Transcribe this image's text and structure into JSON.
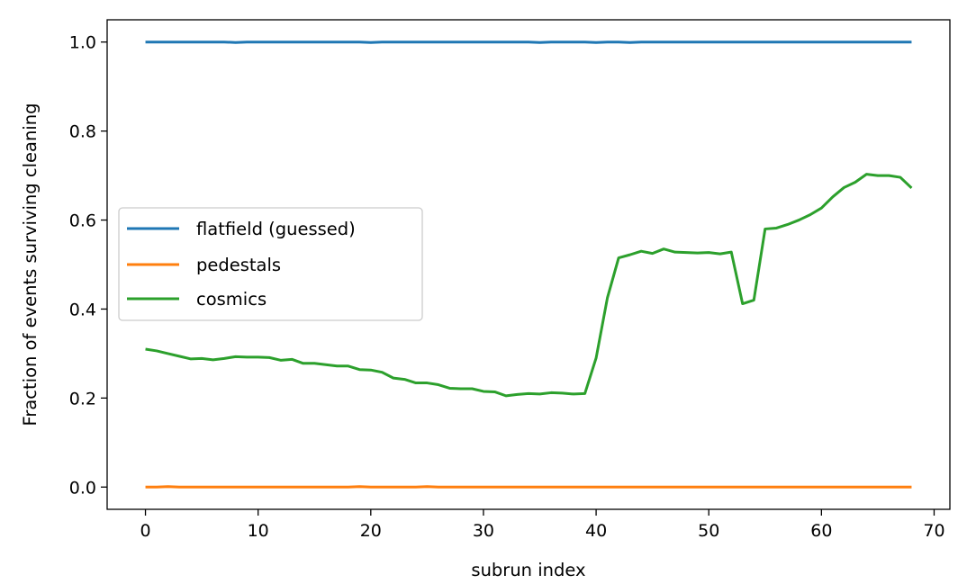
{
  "chart_data": {
    "type": "line",
    "xlabel": "subrun index",
    "ylabel": "Fraction of events surviving cleaning",
    "xlim": [
      -3.4,
      71.4
    ],
    "ylim": [
      -0.05,
      1.05
    ],
    "xticks": [
      0,
      10,
      20,
      30,
      40,
      50,
      60,
      70
    ],
    "yticks": [
      0.0,
      0.2,
      0.4,
      0.6,
      0.8,
      1.0
    ],
    "xtick_labels": [
      "0",
      "10",
      "20",
      "30",
      "40",
      "50",
      "60",
      "70"
    ],
    "ytick_labels": [
      "0.0",
      "0.2",
      "0.4",
      "0.6",
      "0.8",
      "1.0"
    ],
    "legend_position": "center-left",
    "grid": false,
    "x": [
      0,
      1,
      2,
      3,
      4,
      5,
      6,
      7,
      8,
      9,
      10,
      11,
      12,
      13,
      14,
      15,
      16,
      17,
      18,
      19,
      20,
      21,
      22,
      23,
      24,
      25,
      26,
      27,
      28,
      29,
      30,
      31,
      32,
      33,
      34,
      35,
      36,
      37,
      38,
      39,
      40,
      41,
      42,
      43,
      44,
      45,
      46,
      47,
      48,
      49,
      50,
      51,
      52,
      53,
      54,
      55,
      56,
      57,
      58,
      59,
      60,
      61,
      62,
      63,
      64,
      65,
      66,
      67,
      68
    ],
    "series": [
      {
        "name": "flatfield (guessed)",
        "color": "#1f77b4",
        "values": [
          1.0,
          1.0,
          1.0,
          1.0,
          1.0,
          1.0,
          1.0,
          1.0,
          0.999,
          1.0,
          1.0,
          1.0,
          1.0,
          1.0,
          1.0,
          1.0,
          1.0,
          1.0,
          1.0,
          1.0,
          0.999,
          1.0,
          1.0,
          1.0,
          1.0,
          1.0,
          1.0,
          1.0,
          1.0,
          1.0,
          1.0,
          1.0,
          1.0,
          1.0,
          1.0,
          0.999,
          1.0,
          1.0,
          1.0,
          1.0,
          0.999,
          1.0,
          1.0,
          0.999,
          1.0,
          1.0,
          1.0,
          1.0,
          1.0,
          1.0,
          1.0,
          1.0,
          1.0,
          1.0,
          1.0,
          1.0,
          1.0,
          1.0,
          1.0,
          1.0,
          1.0,
          1.0,
          1.0,
          1.0,
          1.0,
          1.0,
          1.0,
          1.0,
          1.0
        ]
      },
      {
        "name": "pedestals",
        "color": "#ff7f0e",
        "values": [
          0.0,
          0.0,
          0.001,
          0.0,
          0.0,
          0.0,
          0.0,
          0.0,
          0.0,
          0.0,
          0.0,
          0.0,
          0.0,
          0.0,
          0.0,
          0.0,
          0.0,
          0.0,
          0.0,
          0.001,
          0.0,
          0.0,
          0.0,
          0.0,
          0.0,
          0.001,
          0.0,
          0.0,
          0.0,
          0.0,
          0.0,
          0.0,
          0.0,
          0.0,
          0.0,
          0.0,
          0.0,
          0.0,
          0.0,
          0.0,
          0.0,
          0.0,
          0.0,
          0.0,
          0.0,
          0.0,
          0.0,
          0.0,
          0.0,
          0.0,
          0.0,
          0.0,
          0.0,
          0.0,
          0.0,
          0.0,
          0.0,
          0.0,
          0.0,
          0.0,
          0.0,
          0.0,
          0.0,
          0.0,
          0.0,
          0.0,
          0.0,
          0.0,
          0.0
        ]
      },
      {
        "name": "cosmics",
        "color": "#2ca02c",
        "values": [
          0.31,
          0.306,
          0.3,
          0.294,
          0.288,
          0.289,
          0.286,
          0.289,
          0.293,
          0.292,
          0.292,
          0.291,
          0.285,
          0.287,
          0.278,
          0.278,
          0.275,
          0.272,
          0.272,
          0.264,
          0.263,
          0.258,
          0.245,
          0.242,
          0.234,
          0.234,
          0.23,
          0.222,
          0.221,
          0.221,
          0.215,
          0.214,
          0.205,
          0.208,
          0.21,
          0.209,
          0.212,
          0.211,
          0.209,
          0.21,
          0.29,
          0.425,
          0.515,
          0.522,
          0.53,
          0.525,
          0.535,
          0.528,
          0.527,
          0.526,
          0.527,
          0.524,
          0.528,
          0.412,
          0.42,
          0.58,
          0.582,
          0.59,
          0.6,
          0.612,
          0.627,
          0.652,
          0.673,
          0.685,
          0.703,
          0.7,
          0.7,
          0.696,
          0.672
        ]
      }
    ]
  }
}
